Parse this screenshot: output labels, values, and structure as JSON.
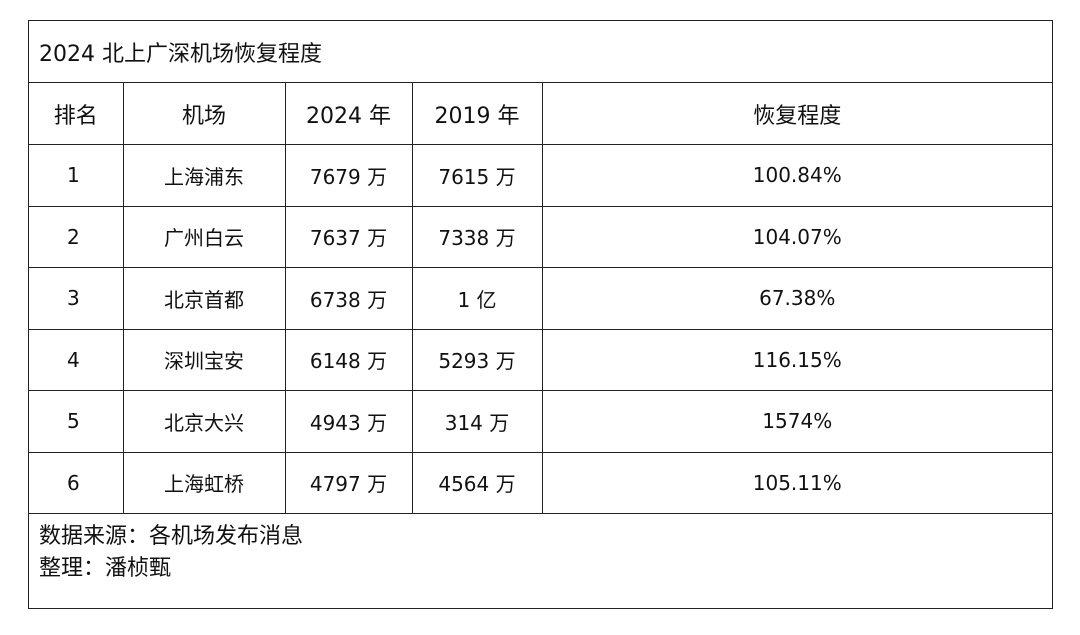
{
  "title": "2024 北上广深机场恢复程度",
  "headers": {
    "rank": "排名",
    "airport": "机场",
    "y2024": "2024 年",
    "y2019": "2019 年",
    "recovery": "恢复程度"
  },
  "rows": [
    {
      "rank": "1",
      "airport": "上海浦东",
      "y2024": "7679 万",
      "y2019": "7615 万",
      "recovery": "100.84%"
    },
    {
      "rank": "2",
      "airport": "广州白云",
      "y2024": "7637 万",
      "y2019": "7338 万",
      "recovery": "104.07%"
    },
    {
      "rank": "3",
      "airport": "北京首都",
      "y2024": "6738 万",
      "y2019": "1 亿",
      "recovery": "67.38%"
    },
    {
      "rank": "4",
      "airport": "深圳宝安",
      "y2024": "6148 万",
      "y2019": "5293 万",
      "recovery": "116.15%"
    },
    {
      "rank": "5",
      "airport": "北京大兴",
      "y2024": "4943 万",
      "y2019": "314 万",
      "recovery": "1574%"
    },
    {
      "rank": "6",
      "airport": "上海虹桥",
      "y2024": "4797 万",
      "y2019": "4564 万",
      "recovery": "105.11%"
    }
  ],
  "footer": {
    "source": "数据来源：各机场发布消息",
    "editor": "整理：潘桢甄"
  }
}
